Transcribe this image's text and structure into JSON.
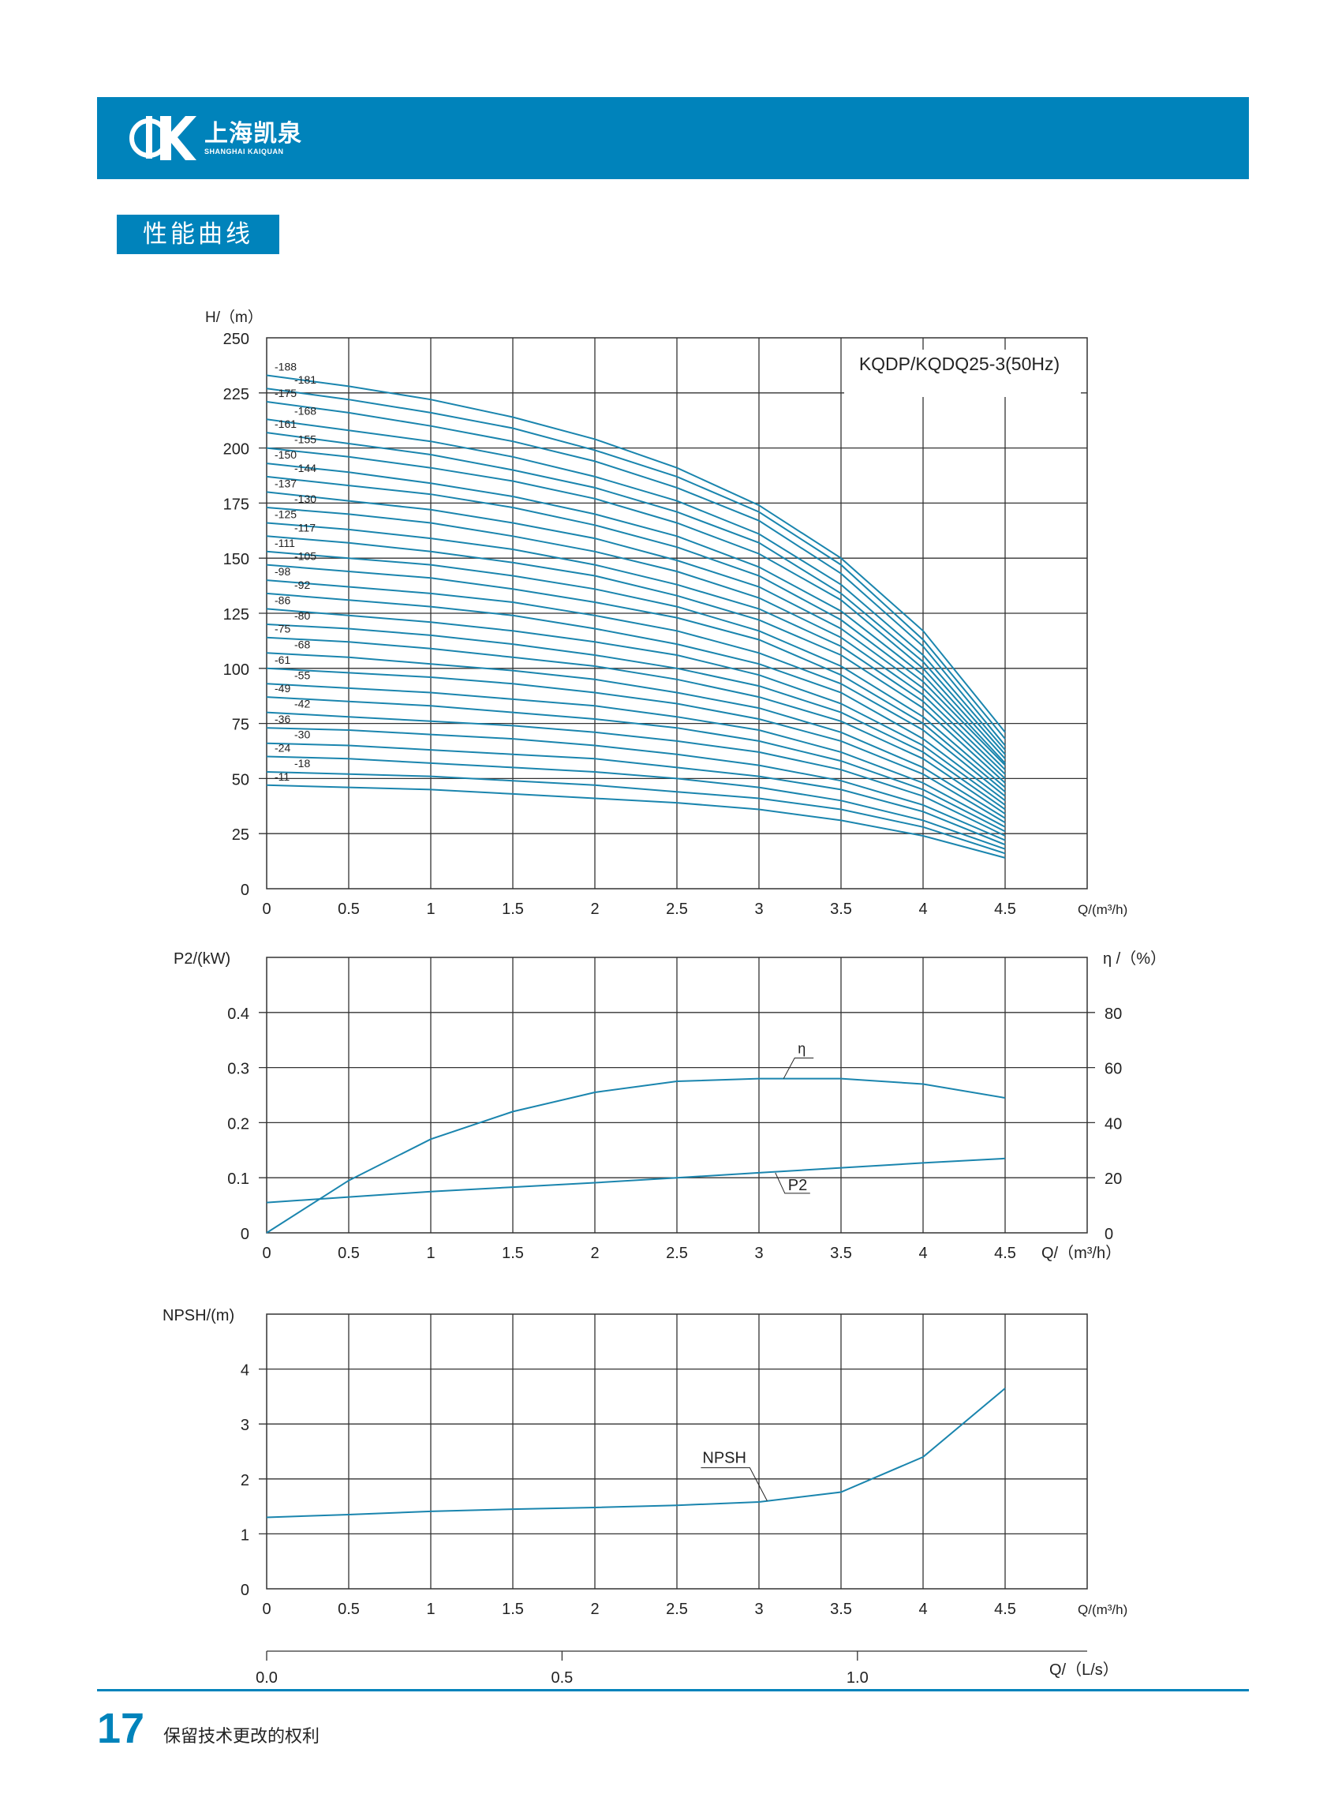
{
  "header": {
    "brand_cn": "上海凯泉",
    "brand_en": "SHANGHAI KAIQUAN",
    "brand_color": "#0083bb"
  },
  "section_title": "性能曲线",
  "footer": {
    "page_number": "17",
    "note": "保留技术更改的权利"
  },
  "chart_data": [
    {
      "type": "line",
      "id": "head",
      "title": "KQDP/KQDQ25-3(50Hz)",
      "ylabel": "H/（m）",
      "xlabel": "Q/(m³/h)",
      "xlim": [
        0,
        5
      ],
      "ylim": [
        0,
        250
      ],
      "x_ticks": [
        "0",
        "0.5",
        "1",
        "1.5",
        "2",
        "2.5",
        "3",
        "3.5",
        "4",
        "4.5"
      ],
      "y_ticks": [
        "0",
        "25",
        "50",
        "75",
        "100",
        "125",
        "150",
        "175",
        "200",
        "225",
        "250"
      ],
      "grid": true,
      "line_color": "#1a85ae",
      "x": [
        0,
        0.5,
        1,
        1.5,
        2,
        2.5,
        3,
        3.5,
        4,
        4.5
      ],
      "series": [
        {
          "name": "-188",
          "values": [
            233,
            228,
            222,
            214,
            204,
            191,
            174,
            150,
            117,
            71
          ]
        },
        {
          "name": "-181",
          "values": [
            227,
            222,
            216,
            209,
            199,
            187,
            171,
            147,
            113,
            68
          ]
        },
        {
          "name": "-175",
          "values": [
            221,
            216,
            210,
            203,
            194,
            182,
            167,
            143,
            110,
            65
          ]
        },
        {
          "name": "-168",
          "values": [
            213,
            208,
            203,
            196,
            187,
            176,
            161,
            138,
            106,
            63
          ]
        },
        {
          "name": "-161",
          "values": [
            207,
            202,
            197,
            190,
            182,
            171,
            157,
            134,
            103,
            61
          ]
        },
        {
          "name": "-155",
          "values": [
            200,
            196,
            191,
            185,
            177,
            166,
            152,
            131,
            100,
            59
          ]
        },
        {
          "name": "-150",
          "values": [
            193,
            189,
            184,
            178,
            170,
            160,
            146,
            126,
            97,
            57
          ]
        },
        {
          "name": "-144",
          "values": [
            187,
            183,
            179,
            173,
            165,
            155,
            142,
            122,
            94,
            56
          ]
        },
        {
          "name": "-137",
          "values": [
            180,
            176,
            172,
            166,
            159,
            149,
            137,
            118,
            91,
            54
          ]
        },
        {
          "name": "-130",
          "values": [
            173,
            170,
            166,
            160,
            153,
            144,
            132,
            114,
            88,
            52
          ]
        },
        {
          "name": "-125",
          "values": [
            166,
            163,
            159,
            154,
            147,
            138,
            127,
            110,
            85,
            50
          ]
        },
        {
          "name": "-117",
          "values": [
            160,
            157,
            153,
            148,
            142,
            133,
            122,
            106,
            82,
            48
          ]
        },
        {
          "name": "-111",
          "values": [
            153,
            150,
            147,
            142,
            136,
            128,
            117,
            101,
            78,
            46
          ]
        },
        {
          "name": "-105",
          "values": [
            147,
            144,
            141,
            136,
            130,
            123,
            113,
            97,
            75,
            44
          ]
        },
        {
          "name": "-98",
          "values": [
            140,
            137,
            134,
            130,
            124,
            117,
            107,
            93,
            72,
            42
          ]
        },
        {
          "name": "-92",
          "values": [
            134,
            131,
            128,
            124,
            118,
            111,
            102,
            89,
            68,
            40
          ]
        },
        {
          "name": "-86",
          "values": [
            127,
            124,
            121,
            117,
            112,
            106,
            97,
            84,
            65,
            38
          ]
        },
        {
          "name": "-80",
          "values": [
            120,
            118,
            115,
            111,
            106,
            100,
            92,
            80,
            62,
            36
          ]
        },
        {
          "name": "-75",
          "values": [
            114,
            112,
            109,
            105,
            101,
            95,
            87,
            76,
            59,
            34
          ]
        },
        {
          "name": "-68",
          "values": [
            107,
            105,
            102,
            99,
            95,
            89,
            82,
            71,
            55,
            32
          ]
        },
        {
          "name": "-61",
          "values": [
            100,
            98,
            96,
            93,
            89,
            84,
            77,
            67,
            52,
            30
          ]
        },
        {
          "name": "-55",
          "values": [
            93,
            91,
            89,
            86,
            83,
            78,
            72,
            62,
            48,
            28
          ]
        },
        {
          "name": "-49",
          "values": [
            87,
            85,
            83,
            80,
            77,
            73,
            67,
            58,
            45,
            26
          ]
        },
        {
          "name": "-42",
          "values": [
            80,
            78,
            76,
            74,
            71,
            67,
            62,
            54,
            42,
            24
          ]
        },
        {
          "name": "-36",
          "values": [
            73,
            72,
            70,
            68,
            65,
            61,
            56,
            49,
            38,
            22
          ]
        },
        {
          "name": "-30",
          "values": [
            66,
            65,
            63,
            61,
            59,
            55,
            51,
            45,
            35,
            20
          ]
        },
        {
          "name": "-24",
          "values": [
            60,
            59,
            57,
            55,
            53,
            50,
            46,
            40,
            31,
            18
          ]
        },
        {
          "name": "-18",
          "values": [
            53,
            52,
            51,
            49,
            47,
            44,
            41,
            36,
            28,
            16
          ]
        },
        {
          "name": "-11",
          "values": [
            47,
            46,
            45,
            43,
            41,
            39,
            36,
            31,
            24,
            14
          ]
        }
      ]
    },
    {
      "type": "line",
      "id": "power-efficiency",
      "ylabel": "P2/(kW)",
      "y2label": "η /（%）",
      "xlabel": "Q/（m³/h）",
      "xlim": [
        0,
        5
      ],
      "ylim": [
        0,
        0.5
      ],
      "y2lim": [
        0,
        100
      ],
      "x_ticks": [
        "0",
        "0.5",
        "1",
        "1.5",
        "2",
        "2.5",
        "3",
        "3.5",
        "4",
        "4.5"
      ],
      "y_ticks": [
        "0",
        "0.1",
        "0.2",
        "0.3",
        "0.4"
      ],
      "y2_ticks": [
        "0",
        "20",
        "40",
        "60",
        "80"
      ],
      "grid": true,
      "line_color": "#1a85ae",
      "x": [
        0,
        0.5,
        1,
        1.5,
        2,
        2.5,
        3,
        3.5,
        4,
        4.5
      ],
      "series": [
        {
          "name": "η",
          "axis": "y2",
          "values": [
            0,
            19,
            34,
            44,
            51,
            55,
            56,
            56,
            54,
            49
          ]
        },
        {
          "name": "P2",
          "axis": "y",
          "values": [
            0.055,
            0.065,
            0.075,
            0.083,
            0.091,
            0.1,
            0.109,
            0.118,
            0.127,
            0.135
          ]
        }
      ]
    },
    {
      "type": "line",
      "id": "npsh",
      "ylabel": "NPSH/(m)",
      "xlabel": "Q/(m³/h)",
      "x2label": "Q/（L/s）",
      "xlim": [
        0,
        5
      ],
      "ylim": [
        0,
        5
      ],
      "x_ticks": [
        "0",
        "0.5",
        "1",
        "1.5",
        "2",
        "2.5",
        "3",
        "3.5",
        "4",
        "4.5"
      ],
      "y_ticks": [
        "0",
        "1",
        "2",
        "3",
        "4"
      ],
      "x2_ticks": [
        "0.0",
        "0.5",
        "1.0"
      ],
      "grid": true,
      "line_color": "#1a85ae",
      "x": [
        0,
        0.5,
        1,
        1.5,
        2,
        2.5,
        3,
        3.5,
        4,
        4.5
      ],
      "series": [
        {
          "name": "NPSH",
          "values": [
            1.3,
            1.35,
            1.41,
            1.45,
            1.48,
            1.52,
            1.58,
            1.76,
            2.4,
            3.65
          ]
        }
      ]
    }
  ]
}
